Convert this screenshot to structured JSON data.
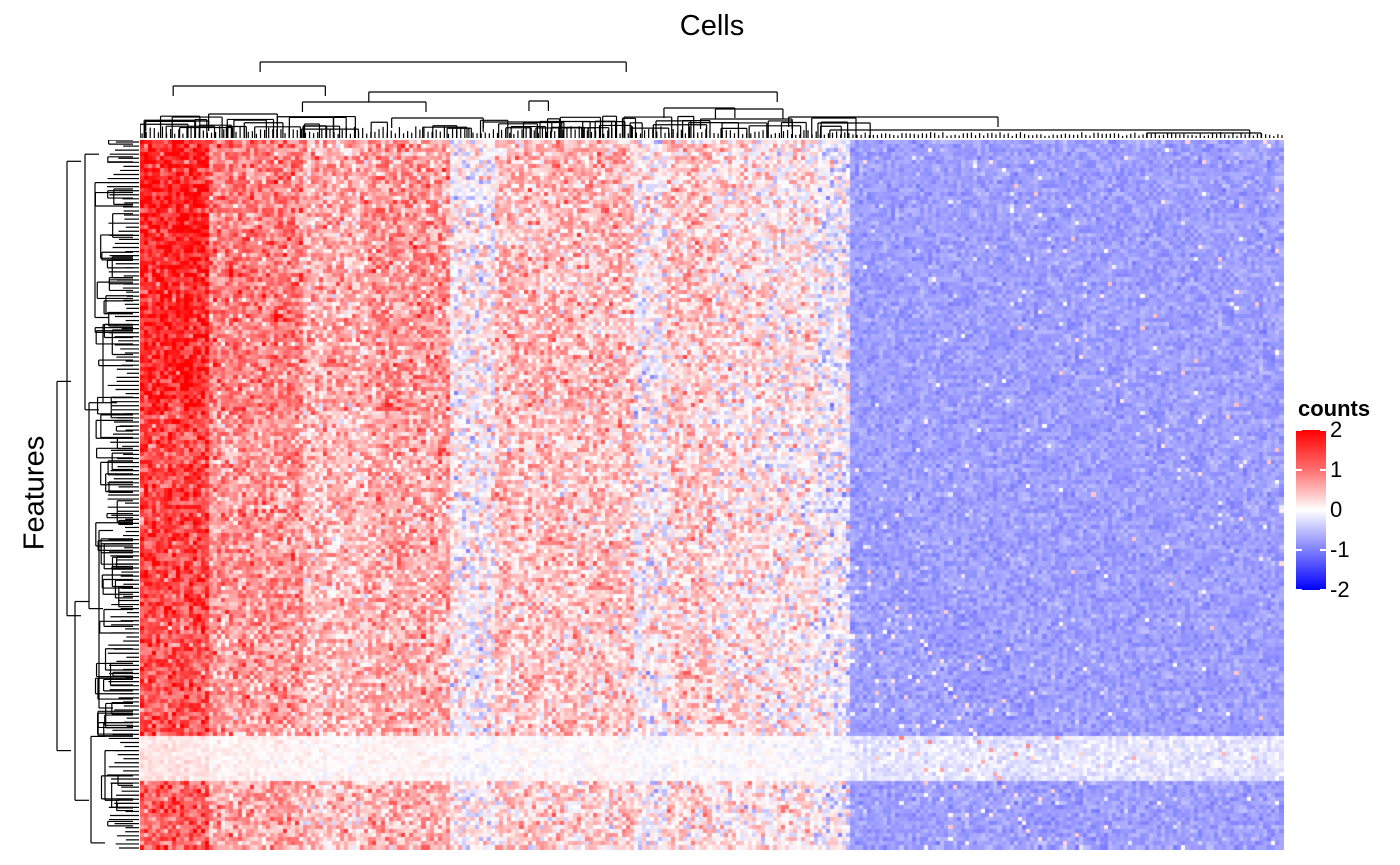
{
  "chart_data": {
    "type": "heatmap",
    "column_title": "Cells",
    "row_title": "Features",
    "legend": {
      "title": "counts",
      "position": "right",
      "ticks": [
        {
          "label": "2",
          "value": 2
        },
        {
          "label": "1",
          "value": 1
        },
        {
          "label": "0",
          "value": 0
        },
        {
          "label": "-1",
          "value": -1
        },
        {
          "label": "-2",
          "value": -2
        }
      ],
      "range": [
        -2,
        2
      ]
    },
    "colors": {
      "high": "#ff0000",
      "mid": "#ffffff",
      "low": "#0000ff"
    },
    "n_columns": 280,
    "n_rows": 175,
    "column_dendrogram": true,
    "row_dendrogram": true,
    "column_blocks": [
      {
        "from": 0.0,
        "to": 0.06,
        "mean": 1.9
      },
      {
        "from": 0.06,
        "to": 0.14,
        "mean": 1.1
      },
      {
        "from": 0.14,
        "to": 0.2,
        "mean": 0.7
      },
      {
        "from": 0.2,
        "to": 0.27,
        "mean": 0.9
      },
      {
        "from": 0.27,
        "to": 0.31,
        "mean": 0.1
      },
      {
        "from": 0.31,
        "to": 0.43,
        "mean": 0.6
      },
      {
        "from": 0.43,
        "to": 0.46,
        "mean": 0.1
      },
      {
        "from": 0.46,
        "to": 0.5,
        "mean": 0.5
      },
      {
        "from": 0.5,
        "to": 0.54,
        "mean": 0.3
      },
      {
        "from": 0.54,
        "to": 0.59,
        "mean": 0.2
      },
      {
        "from": 0.59,
        "to": 0.62,
        "mean": -0.1
      },
      {
        "from": 0.62,
        "to": 1.0,
        "mean": -0.75
      }
    ],
    "row_blocks": [
      {
        "from": 0.0,
        "to": 0.38,
        "mean": 0.6
      },
      {
        "from": 0.38,
        "to": 0.67,
        "mean": 0.3
      },
      {
        "from": 0.67,
        "to": 0.84,
        "mean": 0.2
      },
      {
        "from": 0.84,
        "to": 0.9,
        "mean": -0.1
      },
      {
        "from": 0.9,
        "to": 1.0,
        "mean": 0.1
      }
    ]
  }
}
